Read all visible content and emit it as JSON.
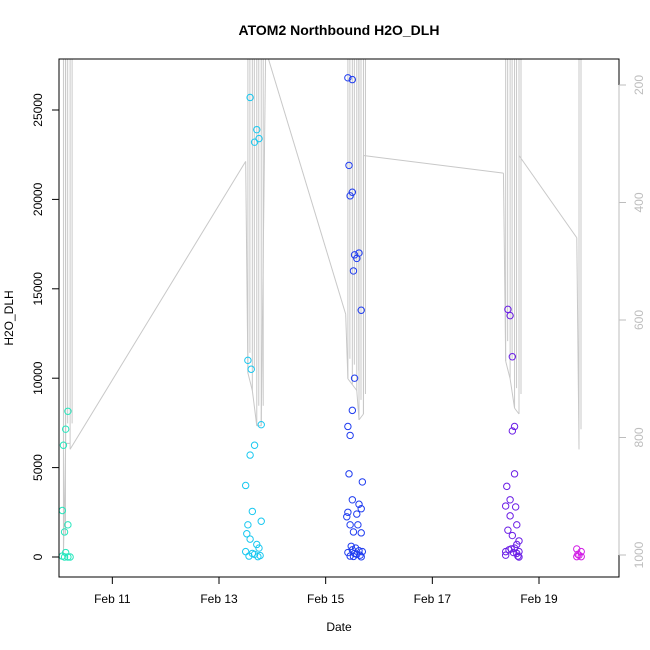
{
  "chart_data": {
    "type": "scatter",
    "title": "ATOM2 Northbound H2O_DLH",
    "xlabel": "Date",
    "ylabel": "H2O_DLH",
    "x_ticks": [
      "Feb 11",
      "Feb 13",
      "Feb 15",
      "Feb 17",
      "Feb 19"
    ],
    "x_tick_dates": [
      "2016-02-11",
      "2016-02-13",
      "2016-02-15",
      "2016-02-17",
      "2016-02-19"
    ],
    "xlim": [
      "2016-02-10T00:00",
      "2016-02-20T12:00"
    ],
    "ylim": [
      0,
      28000
    ],
    "y_ticks": [
      0,
      5000,
      10000,
      15000,
      20000,
      25000
    ],
    "right_axis": {
      "ticks": [
        200,
        400,
        600,
        800,
        1000
      ],
      "ylim": [
        1040,
        140
      ],
      "reversed": true,
      "color": "#bdbdbd"
    },
    "pressure_line_color": "#c8c8c8",
    "point_style": "open-circle",
    "color_scale": "time: cyan to blue to purple to magenta",
    "series": [
      {
        "color": "#27e6bd",
        "points": [
          [
            "2016-02-10T02:00",
            6250
          ],
          [
            "2016-02-10T03:00",
            7150
          ],
          [
            "2016-02-10T04:00",
            8150
          ],
          [
            "2016-02-10T01:30",
            2600
          ],
          [
            "2016-02-10T04:00",
            1800
          ],
          [
            "2016-02-10T02:30",
            1400
          ],
          [
            "2016-02-10T03:00",
            250
          ],
          [
            "2016-02-10T01:30",
            50
          ],
          [
            "2016-02-10T02:30",
            0
          ],
          [
            "2016-02-10T04:00",
            0
          ],
          [
            "2016-02-10T05:00",
            0
          ]
        ]
      },
      {
        "color": "#19c8f0",
        "points": [
          [
            "2016-02-13T14:00",
            25700
          ],
          [
            "2016-02-13T17:00",
            23900
          ],
          [
            "2016-02-13T18:00",
            23400
          ],
          [
            "2016-02-13T16:00",
            23200
          ],
          [
            "2016-02-13T13:00",
            11000
          ],
          [
            "2016-02-13T14:30",
            10500
          ],
          [
            "2016-02-13T19:00",
            7400
          ],
          [
            "2016-02-13T16:00",
            6250
          ],
          [
            "2016-02-13T14:00",
            5700
          ],
          [
            "2016-02-13T12:00",
            4000
          ],
          [
            "2016-02-13T15:00",
            2550
          ],
          [
            "2016-02-13T19:00",
            2000
          ],
          [
            "2016-02-13T13:00",
            1800
          ],
          [
            "2016-02-13T12:30",
            1300
          ],
          [
            "2016-02-13T14:00",
            1000
          ],
          [
            "2016-02-13T17:00",
            700
          ],
          [
            "2016-02-13T18:00",
            500
          ],
          [
            "2016-02-13T12:00",
            300
          ],
          [
            "2016-02-13T15:00",
            200
          ],
          [
            "2016-02-13T16:00",
            150
          ],
          [
            "2016-02-13T18:30",
            80
          ],
          [
            "2016-02-13T13:30",
            50
          ],
          [
            "2016-02-13T17:30",
            20
          ]
        ]
      },
      {
        "color": "#1f3cf0",
        "points": [
          [
            "2016-02-15T10:00",
            26800
          ],
          [
            "2016-02-15T12:00",
            26700
          ],
          [
            "2016-02-15T10:30",
            21900
          ],
          [
            "2016-02-15T12:00",
            20400
          ],
          [
            "2016-02-15T11:00",
            20200
          ],
          [
            "2016-02-15T15:00",
            17000
          ],
          [
            "2016-02-15T13:00",
            16900
          ],
          [
            "2016-02-15T14:00",
            16700
          ],
          [
            "2016-02-15T12:30",
            16000
          ],
          [
            "2016-02-15T16:00",
            13800
          ],
          [
            "2016-02-15T13:00",
            10000
          ],
          [
            "2016-02-15T12:00",
            8200
          ],
          [
            "2016-02-15T10:00",
            7300
          ],
          [
            "2016-02-15T11:00",
            6800
          ],
          [
            "2016-02-15T10:30",
            4650
          ],
          [
            "2016-02-15T16:30",
            4200
          ],
          [
            "2016-02-15T12:00",
            3200
          ],
          [
            "2016-02-15T15:00",
            2950
          ],
          [
            "2016-02-15T10:00",
            2500
          ],
          [
            "2016-02-15T16:00",
            2700
          ],
          [
            "2016-02-15T14:00",
            2400
          ],
          [
            "2016-02-15T09:30",
            2250
          ],
          [
            "2016-02-15T11:00",
            1800
          ],
          [
            "2016-02-15T14:30",
            1800
          ],
          [
            "2016-02-15T12:30",
            1400
          ],
          [
            "2016-02-15T16:00",
            1350
          ],
          [
            "2016-02-15T11:30",
            600
          ],
          [
            "2016-02-15T13:30",
            500
          ],
          [
            "2016-02-15T12:00",
            400
          ],
          [
            "2016-02-15T15:00",
            350
          ],
          [
            "2016-02-15T16:30",
            300
          ],
          [
            "2016-02-15T10:00",
            250
          ],
          [
            "2016-02-15T13:00",
            200
          ],
          [
            "2016-02-15T14:00",
            150
          ],
          [
            "2016-02-15T15:30",
            100
          ],
          [
            "2016-02-15T11:00",
            50
          ],
          [
            "2016-02-15T12:30",
            30
          ],
          [
            "2016-02-15T16:00",
            10
          ]
        ]
      },
      {
        "color": "#6b1ee6",
        "points": [
          [
            "2016-02-18T10:00",
            13850
          ],
          [
            "2016-02-18T11:00",
            13500
          ],
          [
            "2016-02-18T12:00",
            11200
          ],
          [
            "2016-02-18T13:00",
            7300
          ],
          [
            "2016-02-18T12:00",
            7050
          ],
          [
            "2016-02-18T13:00",
            4650
          ],
          [
            "2016-02-18T09:30",
            3950
          ],
          [
            "2016-02-18T11:00",
            3200
          ],
          [
            "2016-02-18T09:00",
            2850
          ],
          [
            "2016-02-18T13:30",
            2800
          ],
          [
            "2016-02-18T11:00",
            2300
          ],
          [
            "2016-02-18T14:00",
            1800
          ],
          [
            "2016-02-18T10:00",
            1500
          ],
          [
            "2016-02-18T12:00",
            1200
          ],
          [
            "2016-02-18T15:00",
            900
          ],
          [
            "2016-02-18T14:00",
            700
          ],
          [
            "2016-02-18T13:00",
            500
          ],
          [
            "2016-02-18T11:30",
            450
          ],
          [
            "2016-02-18T10:30",
            400
          ],
          [
            "2016-02-18T09:00",
            300
          ],
          [
            "2016-02-18T12:30",
            250
          ],
          [
            "2016-02-18T09:00",
            100
          ],
          [
            "2016-02-18T14:00",
            200
          ],
          [
            "2016-02-18T15:00",
            300
          ],
          [
            "2016-02-18T14:30",
            50
          ],
          [
            "2016-02-18T15:00",
            0
          ]
        ]
      },
      {
        "color": "#d21ee6",
        "points": [
          [
            "2016-02-19T17:00",
            450
          ],
          [
            "2016-02-19T19:00",
            300
          ],
          [
            "2016-02-19T17:30",
            150
          ],
          [
            "2016-02-19T18:00",
            100
          ],
          [
            "2016-02-19T17:00",
            20
          ],
          [
            "2016-02-19T19:00",
            20
          ]
        ]
      }
    ],
    "pressure_trace": [
      [
        "2016-02-10T02:00",
        1000,
        140
      ],
      [
        "2016-02-10T03:00",
        810,
        140
      ],
      [
        "2016-02-10T05:00",
        810,
        140
      ],
      [
        "2016-02-10T05:00",
        820,
        null
      ],
      [
        "2016-02-13T12:00",
        330,
        null
      ],
      [
        "2016-02-13T13:00",
        690,
        140
      ],
      [
        "2016-02-13T15:00",
        720,
        140
      ],
      [
        "2016-02-13T17:00",
        780,
        140
      ],
      [
        "2016-02-13T19:00",
        780,
        140
      ],
      [
        "2016-02-13T21:00",
        140,
        null
      ],
      [
        "2016-02-15T09:00",
        590,
        null
      ],
      [
        "2016-02-15T10:00",
        700,
        140
      ],
      [
        "2016-02-15T12:00",
        710,
        140
      ],
      [
        "2016-02-15T14:00",
        720,
        140
      ],
      [
        "2016-02-15T15:00",
        770,
        140
      ],
      [
        "2016-02-15T17:00",
        760,
        140
      ],
      [
        "2016-02-15T17:00",
        320,
        null
      ],
      [
        "2016-02-18T08:00",
        350,
        null
      ],
      [
        "2016-02-18T09:00",
        670,
        140
      ],
      [
        "2016-02-18T11:00",
        700,
        140
      ],
      [
        "2016-02-18T13:00",
        750,
        140
      ],
      [
        "2016-02-18T15:00",
        760,
        140
      ],
      [
        "2016-02-18T15:00",
        320,
        null
      ],
      [
        "2016-02-19T17:00",
        460,
        null
      ],
      [
        "2016-02-19T18:00",
        820,
        140
      ]
    ]
  }
}
